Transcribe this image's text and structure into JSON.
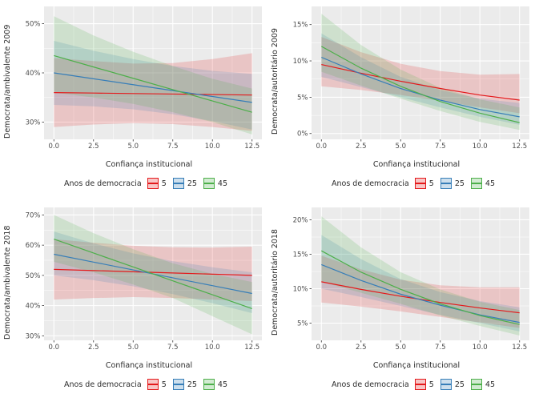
{
  "accent_colors": {
    "panel_background": "#EBEBEB",
    "gridline": "#FFFFFF",
    "tick_text": "#4d4d4d",
    "title_text": "#2b2b2b",
    "series_red": "#E41A1C",
    "series_blue": "#377EB8",
    "series_green": "#4DAF4A"
  },
  "chart_data": [
    {
      "type": "line",
      "ylabel": "Democrata/ambivalente 2009",
      "xlabel": "Confiança institucional",
      "legend_title": "Anos de democracia",
      "legend_position": "bottom",
      "grid": "on",
      "xlim": [
        -0.62,
        13.12
      ],
      "x_tick_values": [
        0,
        2.5,
        5,
        7.5,
        10,
        12.5
      ],
      "x_tick_labels": [
        "0.0",
        "2.5",
        "5.0",
        "7.5",
        "10.0",
        "12.5"
      ],
      "ylim": [
        26.5,
        53.5
      ],
      "y_tick_values": [
        30,
        40,
        50
      ],
      "y_tick_labels": [
        "30%",
        "40%",
        "50%"
      ],
      "x": [
        0,
        2.5,
        5,
        7.5,
        10,
        12.5
      ],
      "series": [
        {
          "name": "5",
          "color": "#E41A1C",
          "y": [
            36,
            35.9,
            35.8,
            35.7,
            35.6,
            35.5
          ],
          "lower": [
            29,
            29.5,
            29.8,
            29.6,
            29,
            28.2
          ],
          "upper": [
            43,
            42.4,
            41.9,
            42,
            42.8,
            44
          ]
        },
        {
          "name": "25",
          "color": "#377EB8",
          "y": [
            40,
            38.8,
            37.6,
            36.4,
            35.2,
            34
          ],
          "lower": [
            33.5,
            33.2,
            32.6,
            31.6,
            30.2,
            28.5
          ],
          "upper": [
            46.5,
            44.5,
            42.8,
            41.4,
            40.4,
            39.8
          ]
        },
        {
          "name": "45",
          "color": "#4DAF4A",
          "y": [
            43.5,
            41.2,
            38.9,
            36.6,
            34.3,
            32
          ],
          "lower": [
            36,
            35,
            33.7,
            32,
            30,
            27.5
          ],
          "upper": [
            51.5,
            47.6,
            44.3,
            41.4,
            38.8,
            36.8
          ]
        }
      ]
    },
    {
      "type": "line",
      "ylabel": "Democrata/autoritário 2009",
      "xlabel": "Confiança institucional",
      "legend_title": "Anos de democracia",
      "legend_position": "bottom",
      "grid": "on",
      "xlim": [
        -0.62,
        13.12
      ],
      "x_tick_values": [
        0,
        2.5,
        5,
        7.5,
        10,
        12.5
      ],
      "x_tick_labels": [
        "0.0",
        "2.5",
        "5.0",
        "7.5",
        "10.0",
        "12.5"
      ],
      "ylim": [
        -0.8,
        17.5
      ],
      "y_tick_values": [
        0,
        5,
        10,
        15
      ],
      "y_tick_labels": [
        "0%",
        "5%",
        "10%",
        "15%"
      ],
      "x": [
        0,
        2.5,
        5,
        7.5,
        10,
        12.5
      ],
      "series": [
        {
          "name": "5",
          "color": "#E41A1C",
          "y": [
            9.5,
            8.3,
            7.2,
            6.2,
            5.3,
            4.6
          ],
          "lower": [
            6.5,
            6,
            5.3,
            4.5,
            3.6,
            2.8
          ],
          "upper": [
            13.3,
            11.2,
            9.6,
            8.6,
            8.1,
            8.2
          ]
        },
        {
          "name": "25",
          "color": "#377EB8",
          "y": [
            10.5,
            8.2,
            6.2,
            4.6,
            3.3,
            2.3
          ],
          "lower": [
            7.8,
            6.4,
            5,
            3.6,
            2.3,
            1.2
          ],
          "upper": [
            13.8,
            10.5,
            7.8,
            6,
            4.8,
            4.2
          ]
        },
        {
          "name": "45",
          "color": "#4DAF4A",
          "y": [
            12,
            9,
            6.5,
            4.4,
            2.8,
            1.5
          ],
          "lower": [
            8.5,
            6.6,
            4.8,
            3.1,
            1.6,
            0.5
          ],
          "upper": [
            16.5,
            12.2,
            8.8,
            6.3,
            4.7,
            3.6
          ]
        }
      ]
    },
    {
      "type": "line",
      "ylabel": "Democrata/ambivalente 2018",
      "xlabel": "Confiança institucional",
      "legend_title": "Anos de democracia",
      "legend_position": "bottom",
      "grid": "on",
      "xlim": [
        -0.62,
        13.12
      ],
      "x_tick_values": [
        0,
        2.5,
        5,
        7.5,
        10,
        12.5
      ],
      "x_tick_labels": [
        "0.0",
        "2.5",
        "5.0",
        "7.5",
        "10.0",
        "12.5"
      ],
      "ylim": [
        28.5,
        72.5
      ],
      "y_tick_values": [
        30,
        40,
        50,
        60,
        70
      ],
      "y_tick_labels": [
        "30%",
        "40%",
        "50%",
        "60%",
        "70%"
      ],
      "x": [
        0,
        2.5,
        5,
        7.5,
        10,
        12.5
      ],
      "series": [
        {
          "name": "5",
          "color": "#E41A1C",
          "y": [
            52,
            51.6,
            51.2,
            50.8,
            50.4,
            50
          ],
          "lower": [
            42,
            42.5,
            42.8,
            42.5,
            42,
            41.5
          ],
          "upper": [
            62,
            60.8,
            59.8,
            59.3,
            59.2,
            59.5
          ]
        },
        {
          "name": "25",
          "color": "#377EB8",
          "y": [
            57,
            54.4,
            51.8,
            49.2,
            46.6,
            44
          ],
          "lower": [
            50,
            48.4,
            46.4,
            43.8,
            40.8,
            37.5
          ],
          "upper": [
            64.5,
            60.6,
            57.3,
            54.7,
            52.7,
            51
          ]
        },
        {
          "name": "45",
          "color": "#4DAF4A",
          "y": [
            62,
            57.4,
            52.8,
            48.2,
            43.6,
            39
          ],
          "lower": [
            54.5,
            51,
            47,
            42.5,
            36.5,
            30.5
          ],
          "upper": [
            70,
            64,
            58.7,
            54,
            50.5,
            47.8
          ]
        }
      ]
    },
    {
      "type": "line",
      "ylabel": "Democrata/autoritário 2018",
      "xlabel": "Confiança institucional",
      "legend_title": "Anos de democracia",
      "legend_position": "bottom",
      "grid": "on",
      "xlim": [
        -0.62,
        13.12
      ],
      "x_tick_values": [
        0,
        2.5,
        5,
        7.5,
        10,
        12.5
      ],
      "x_tick_labels": [
        "0.0",
        "2.5",
        "5.0",
        "7.5",
        "10.0",
        "12.5"
      ],
      "ylim": [
        2.5,
        21.8
      ],
      "y_tick_values": [
        5,
        10,
        15,
        20
      ],
      "y_tick_labels": [
        "5%",
        "10%",
        "15%",
        "20%"
      ],
      "x": [
        0,
        2.5,
        5,
        7.5,
        10,
        12.5
      ],
      "series": [
        {
          "name": "5",
          "color": "#E41A1C",
          "y": [
            11,
            9.9,
            8.9,
            8,
            7.2,
            6.5
          ],
          "lower": [
            8,
            7.4,
            6.7,
            5.9,
            5.1,
            4.3
          ],
          "upper": [
            14.8,
            12.8,
            11.3,
            10.5,
            10.2,
            10.2
          ]
        },
        {
          "name": "25",
          "color": "#377EB8",
          "y": [
            13.5,
            11.2,
            9.2,
            7.6,
            6.2,
            5.1
          ],
          "lower": [
            10,
            8.8,
            7.5,
            6.2,
            5,
            3.8
          ],
          "upper": [
            17.8,
            14.3,
            11.4,
            9.5,
            8.2,
            7.3
          ]
        },
        {
          "name": "45",
          "color": "#4DAF4A",
          "y": [
            15.5,
            12.4,
            9.9,
            7.8,
            6.1,
            4.8
          ],
          "lower": [
            11,
            9.4,
            7.8,
            6.1,
            4.6,
            3.2
          ],
          "upper": [
            20.5,
            16,
            12.4,
            9.9,
            8.1,
            6.9
          ]
        }
      ]
    }
  ]
}
